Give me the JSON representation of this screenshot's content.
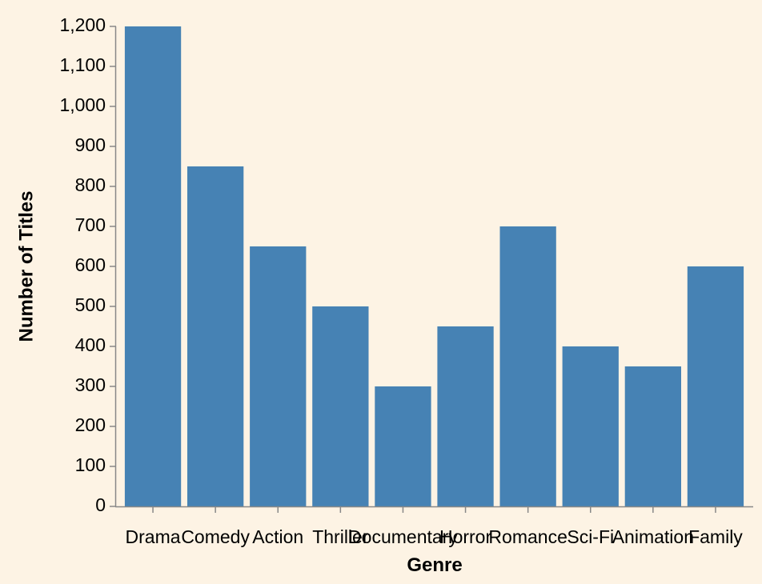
{
  "chart_data": {
    "type": "bar",
    "categories": [
      "Drama",
      "Comedy",
      "Action",
      "Thriller",
      "Documentary",
      "Horror",
      "Romance",
      "Sci-Fi",
      "Animation",
      "Family"
    ],
    "values": [
      1200,
      850,
      650,
      500,
      300,
      450,
      700,
      400,
      350,
      600
    ],
    "xlabel": "Genre",
    "ylabel": "Number of Titles",
    "ylim": [
      0,
      1200
    ],
    "yticks": [
      0,
      100,
      200,
      300,
      400,
      500,
      600,
      700,
      800,
      900,
      1000,
      1100,
      1200
    ],
    "ytick_labels": [
      "0",
      "100",
      "200",
      "300",
      "400",
      "500",
      "600",
      "700",
      "800",
      "900",
      "1,000",
      "1,100",
      "1,200"
    ],
    "grid": false,
    "legend": "none",
    "colors": {
      "bar": "#4682b4",
      "axis": "#888888",
      "background": "#fdf3e4"
    }
  }
}
